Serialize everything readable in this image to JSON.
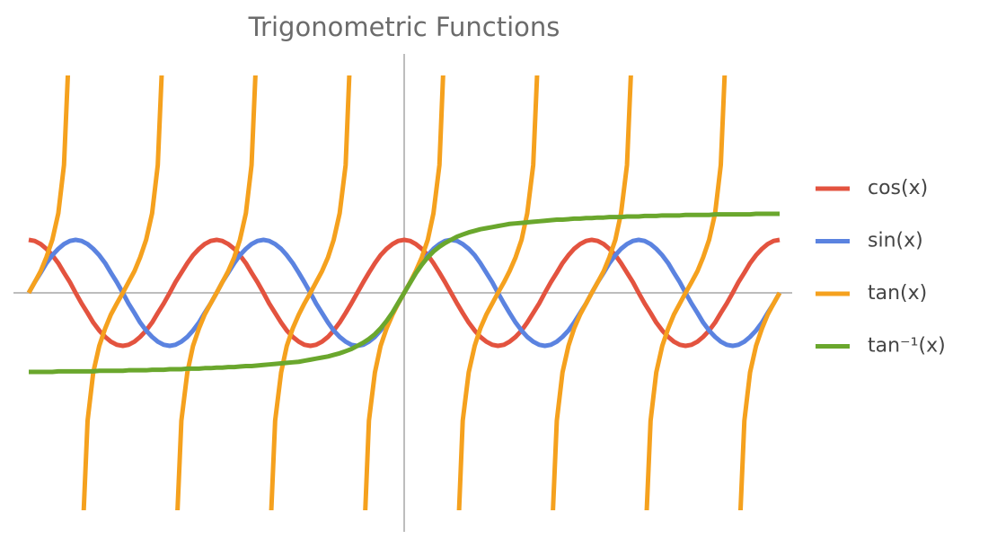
{
  "chart_data": {
    "type": "line",
    "title": "Trigonometric Functions",
    "legend": "right",
    "xlim": [
      -12.57,
      12.57
    ],
    "ylim": [
      -4.1,
      4.1
    ],
    "x": [
      -12.57,
      -12.37,
      -12.17,
      -11.98,
      -11.78,
      -11.58,
      -11.39,
      -11.19,
      -11.0,
      -10.8,
      -10.6,
      -10.41,
      -10.21,
      -10.01,
      -9.82,
      -9.62,
      -9.42,
      -9.23,
      -9.03,
      -8.84,
      -8.64,
      -8.44,
      -8.25,
      -8.05,
      -7.85,
      -7.66,
      -7.46,
      -7.26,
      -7.07,
      -6.87,
      -6.68,
      -6.48,
      -6.28,
      -6.09,
      -5.89,
      -5.69,
      -5.5,
      -5.3,
      -5.11,
      -4.91,
      -4.71,
      -4.52,
      -4.32,
      -4.12,
      -3.93,
      -3.73,
      -3.53,
      -3.34,
      -3.14,
      -2.95,
      -2.75,
      -2.55,
      -2.36,
      -2.16,
      -1.96,
      -1.77,
      -1.57,
      -1.37,
      -1.18,
      -0.98,
      -0.79,
      -0.59,
      -0.39,
      -0.2,
      0,
      0.2,
      0.39,
      0.59,
      0.79,
      0.98,
      1.18,
      1.37,
      1.57,
      1.77,
      1.96,
      2.16,
      2.36,
      2.55,
      2.75,
      2.95,
      3.14,
      3.34,
      3.53,
      3.73,
      3.93,
      4.12,
      4.32,
      4.52,
      4.71,
      4.91,
      5.11,
      5.3,
      5.5,
      5.69,
      5.89,
      6.09,
      6.28,
      6.48,
      6.68,
      6.87,
      7.07,
      7.26,
      7.46,
      7.66,
      7.85,
      8.05,
      8.25,
      8.44,
      8.64,
      8.84,
      9.03,
      9.23,
      9.42,
      9.62,
      9.82,
      10.01,
      10.21,
      10.41,
      10.6,
      10.8,
      11.0,
      11.19,
      11.39,
      11.58,
      11.78,
      11.98,
      12.17,
      12.37,
      12.57
    ],
    "series": [
      {
        "name": "cos(x)",
        "color": "#e3533f",
        "values": [
          1,
          0.98,
          0.92,
          0.83,
          0.71,
          0.56,
          0.38,
          0.2,
          0,
          -0.2,
          -0.38,
          -0.56,
          -0.71,
          -0.83,
          -0.92,
          -0.98,
          -1,
          -0.98,
          -0.92,
          -0.83,
          -0.71,
          -0.56,
          -0.38,
          -0.2,
          0,
          0.2,
          0.38,
          0.56,
          0.71,
          0.83,
          0.92,
          0.98,
          1,
          0.98,
          0.92,
          0.83,
          0.71,
          0.56,
          0.38,
          0.2,
          0,
          -0.2,
          -0.38,
          -0.56,
          -0.71,
          -0.83,
          -0.92,
          -0.98,
          -1,
          -0.98,
          -0.92,
          -0.83,
          -0.71,
          -0.56,
          -0.38,
          -0.2,
          0,
          0.2,
          0.38,
          0.56,
          0.71,
          0.83,
          0.92,
          0.98,
          1,
          0.98,
          0.92,
          0.83,
          0.71,
          0.56,
          0.38,
          0.2,
          0,
          -0.2,
          -0.38,
          -0.56,
          -0.71,
          -0.83,
          -0.92,
          -0.98,
          -1,
          -0.98,
          -0.92,
          -0.83,
          -0.71,
          -0.56,
          -0.38,
          -0.2,
          0,
          0.2,
          0.38,
          0.56,
          0.71,
          0.83,
          0.92,
          0.98,
          1,
          0.98,
          0.92,
          0.83,
          0.71,
          0.56,
          0.38,
          0.2,
          0,
          -0.2,
          -0.38,
          -0.56,
          -0.71,
          -0.83,
          -0.92,
          -0.98,
          -1,
          -0.98,
          -0.92,
          -0.83,
          -0.71,
          -0.56,
          -0.38,
          -0.2,
          0,
          0.2,
          0.38,
          0.56,
          0.71,
          0.83,
          0.92,
          0.98,
          1
        ]
      },
      {
        "name": "sin(x)",
        "color": "#5b83e0",
        "values": [
          0,
          0.2,
          0.38,
          0.56,
          0.71,
          0.83,
          0.92,
          0.98,
          1,
          0.98,
          0.92,
          0.83,
          0.71,
          0.56,
          0.38,
          0.2,
          0,
          -0.2,
          -0.38,
          -0.56,
          -0.71,
          -0.83,
          -0.92,
          -0.98,
          -1,
          -0.98,
          -0.92,
          -0.83,
          -0.71,
          -0.56,
          -0.38,
          -0.2,
          0,
          0.2,
          0.38,
          0.56,
          0.71,
          0.83,
          0.92,
          0.98,
          1,
          0.98,
          0.92,
          0.83,
          0.71,
          0.56,
          0.38,
          0.2,
          0,
          -0.2,
          -0.38,
          -0.56,
          -0.71,
          -0.83,
          -0.92,
          -0.98,
          -1,
          -0.98,
          -0.92,
          -0.83,
          -0.71,
          -0.56,
          -0.38,
          -0.2,
          0,
          0.2,
          0.38,
          0.56,
          0.71,
          0.83,
          0.92,
          0.98,
          1,
          0.98,
          0.92,
          0.83,
          0.71,
          0.56,
          0.38,
          0.2,
          0,
          -0.2,
          -0.38,
          -0.56,
          -0.71,
          -0.83,
          -0.92,
          -0.98,
          -1,
          -0.98,
          -0.92,
          -0.83,
          -0.71,
          -0.56,
          -0.38,
          -0.2,
          0,
          0.2,
          0.38,
          0.56,
          0.71,
          0.83,
          0.92,
          0.98,
          1,
          0.98,
          0.92,
          0.83,
          0.71,
          0.56,
          0.38,
          0.2,
          0,
          -0.2,
          -0.38,
          -0.56,
          -0.71,
          -0.83,
          -0.92,
          -0.98,
          -1,
          -0.98,
          -0.92,
          -0.83,
          -0.71,
          -0.56,
          -0.38,
          -0.2,
          0
        ]
      },
      {
        "name": "tan(x)",
        "color": "#f5a11e",
        "values": [
          0,
          0.2,
          0.41,
          0.67,
          1,
          1.5,
          2.41,
          5.03,
          null,
          -5.03,
          -2.41,
          -1.5,
          -1,
          -0.67,
          -0.41,
          -0.2,
          0,
          0.2,
          0.41,
          0.67,
          1,
          1.5,
          2.41,
          5.03,
          null,
          -5.03,
          -2.41,
          -1.5,
          -1,
          -0.67,
          -0.41,
          -0.2,
          0,
          0.2,
          0.41,
          0.67,
          1,
          1.5,
          2.41,
          5.03,
          null,
          -5.03,
          -2.41,
          -1.5,
          -1,
          -0.67,
          -0.41,
          -0.2,
          0,
          0.2,
          0.41,
          0.67,
          1,
          1.5,
          2.41,
          5.03,
          null,
          -5.03,
          -2.41,
          -1.5,
          -1,
          -0.67,
          -0.41,
          -0.2,
          0,
          0.2,
          0.41,
          0.67,
          1,
          1.5,
          2.41,
          5.03,
          null,
          -5.03,
          -2.41,
          -1.5,
          -1,
          -0.67,
          -0.41,
          -0.2,
          0,
          0.2,
          0.41,
          0.67,
          1,
          1.5,
          2.41,
          5.03,
          null,
          -5.03,
          -2.41,
          -1.5,
          -1,
          -0.67,
          -0.41,
          -0.2,
          0,
          0.2,
          0.41,
          0.67,
          1,
          1.5,
          2.41,
          5.03,
          null,
          -5.03,
          -2.41,
          -1.5,
          -1,
          -0.67,
          -0.41,
          -0.2,
          0,
          0.2,
          0.41,
          0.67,
          1,
          1.5,
          2.41,
          5.03,
          null,
          -5.03,
          -2.41,
          -1.5,
          -1,
          -0.67,
          -0.41,
          -0.2,
          0
        ]
      },
      {
        "name": "tan⁻¹(x)",
        "color": "#6aa72d",
        "values": [
          -1.49,
          -1.49,
          -1.49,
          -1.49,
          -1.49,
          -1.48,
          -1.48,
          -1.48,
          -1.48,
          -1.48,
          -1.48,
          -1.48,
          -1.47,
          -1.47,
          -1.47,
          -1.47,
          -1.47,
          -1.46,
          -1.46,
          -1.46,
          -1.46,
          -1.45,
          -1.45,
          -1.45,
          -1.44,
          -1.44,
          -1.44,
          -1.43,
          -1.43,
          -1.43,
          -1.42,
          -1.42,
          -1.41,
          -1.41,
          -1.4,
          -1.4,
          -1.39,
          -1.38,
          -1.38,
          -1.37,
          -1.36,
          -1.35,
          -1.34,
          -1.33,
          -1.32,
          -1.31,
          -1.3,
          -1.28,
          -1.26,
          -1.24,
          -1.22,
          -1.2,
          -1.17,
          -1.14,
          -1.1,
          -1.06,
          -1.0,
          -0.94,
          -0.87,
          -0.78,
          -0.67,
          -0.53,
          -0.37,
          -0.19,
          0,
          0.19,
          0.37,
          0.53,
          0.67,
          0.78,
          0.87,
          0.94,
          1.0,
          1.06,
          1.1,
          1.14,
          1.17,
          1.2,
          1.22,
          1.24,
          1.26,
          1.28,
          1.3,
          1.31,
          1.32,
          1.33,
          1.34,
          1.35,
          1.36,
          1.37,
          1.38,
          1.38,
          1.39,
          1.4,
          1.4,
          1.41,
          1.41,
          1.42,
          1.42,
          1.43,
          1.43,
          1.43,
          1.44,
          1.44,
          1.44,
          1.45,
          1.45,
          1.45,
          1.46,
          1.46,
          1.46,
          1.46,
          1.47,
          1.47,
          1.47,
          1.47,
          1.47,
          1.48,
          1.48,
          1.48,
          1.48,
          1.48,
          1.48,
          1.48,
          1.49,
          1.49,
          1.49,
          1.49,
          1.49
        ]
      }
    ]
  }
}
